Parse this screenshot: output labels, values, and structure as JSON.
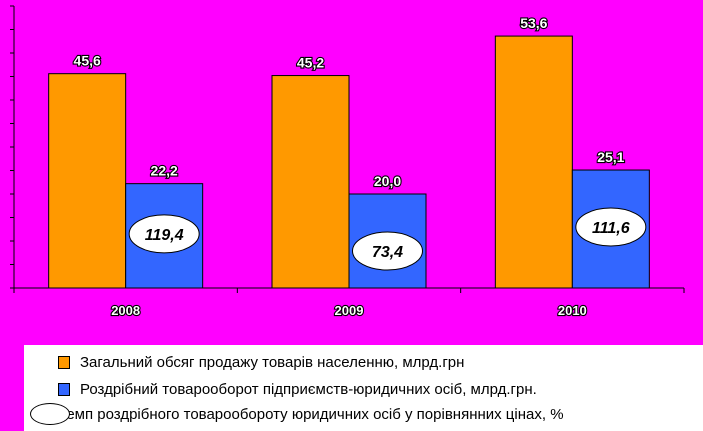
{
  "chart_data": {
    "type": "bar",
    "categories": [
      "2008",
      "2009",
      "2010"
    ],
    "series": [
      {
        "name": "Загальний обсяг продажу товарів населенню, млрд.грн",
        "values": [
          45.6,
          45.2,
          53.6
        ],
        "labels": [
          "45,6",
          "45,2",
          "53,6"
        ],
        "color": "#ff9900"
      },
      {
        "name": "Роздрібний товарооборот підприємств-юридичних осіб, млрд.грн.",
        "values": [
          22.2,
          20.0,
          25.1
        ],
        "labels": [
          "22,2",
          "20,0",
          "25,1"
        ],
        "color": "#3366ff"
      }
    ],
    "ellipse_series": {
      "name": "Темп роздрібного товарообороту юридичних осіб у порівнянних цінах, %",
      "values": [
        119.4,
        73.4,
        111.6
      ],
      "labels": [
        "119,4",
        "73,4",
        "111,6"
      ]
    },
    "ylim": [
      0,
      60
    ],
    "grid": false,
    "legend_position": "bottom"
  }
}
